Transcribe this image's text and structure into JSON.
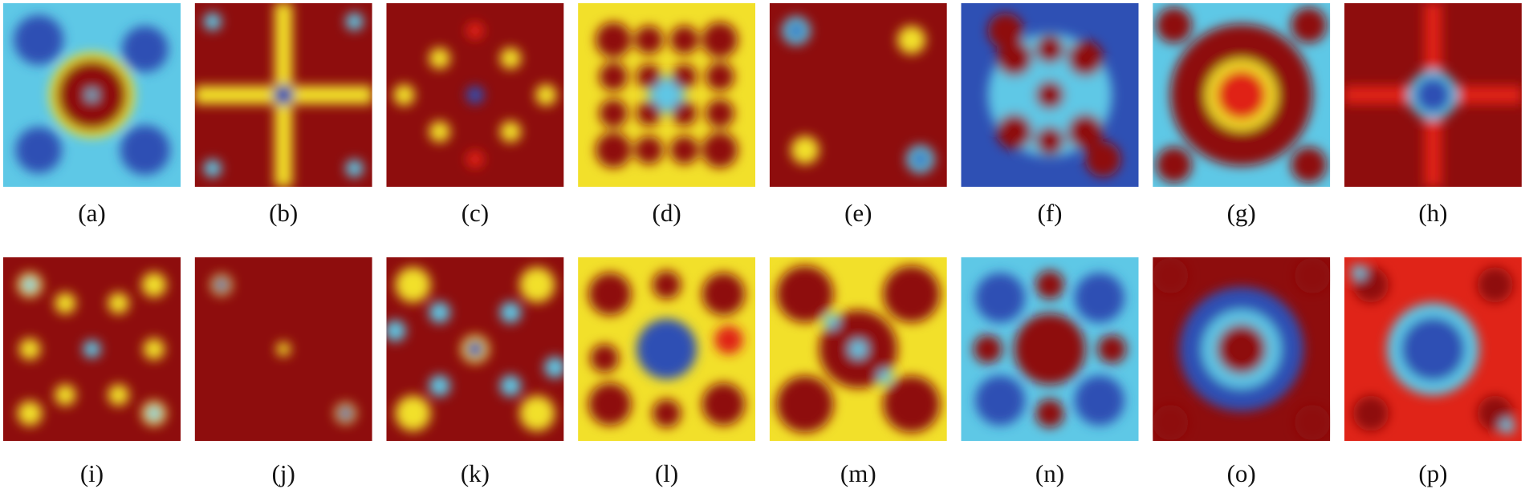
{
  "panels": [
    {
      "label": "(a)"
    },
    {
      "label": "(b)"
    },
    {
      "label": "(c)"
    },
    {
      "label": "(d)"
    },
    {
      "label": "(e)"
    },
    {
      "label": "(f)"
    },
    {
      "label": "(g)"
    },
    {
      "label": "(h)"
    },
    {
      "label": "(i)"
    },
    {
      "label": "(j)"
    },
    {
      "label": "(k)"
    },
    {
      "label": "(l)"
    },
    {
      "label": "(m)"
    },
    {
      "label": "(n)"
    },
    {
      "label": "(o)"
    },
    {
      "label": "(p)"
    }
  ]
}
